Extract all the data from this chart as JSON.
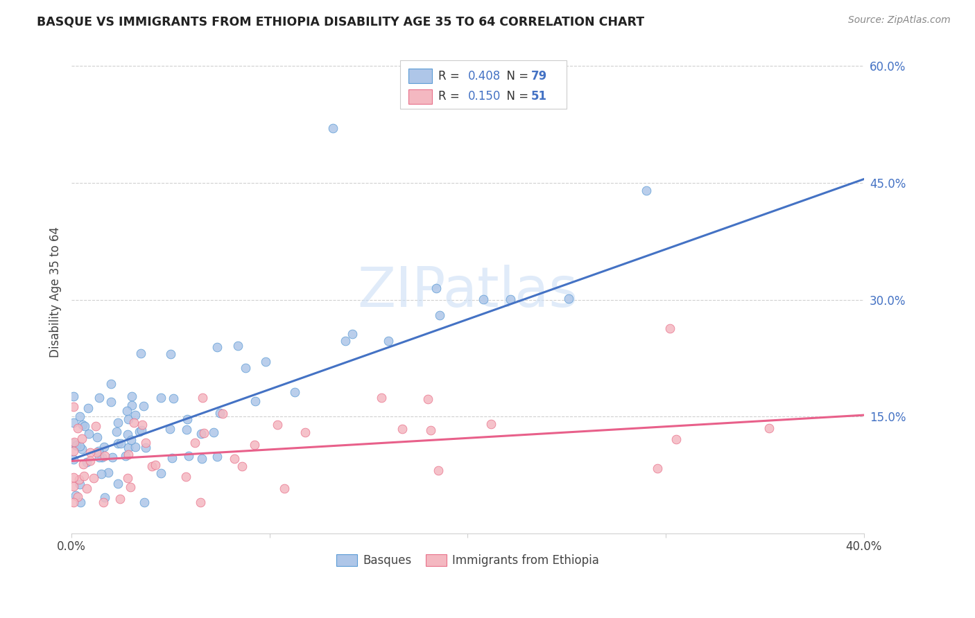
{
  "title": "BASQUE VS IMMIGRANTS FROM ETHIOPIA DISABILITY AGE 35 TO 64 CORRELATION CHART",
  "source": "Source: ZipAtlas.com",
  "ylabel": "Disability Age 35 to 64",
  "xlim": [
    0.0,
    0.4
  ],
  "ylim": [
    0.0,
    0.62
  ],
  "yticks_right": [
    0.15,
    0.3,
    0.45,
    0.6
  ],
  "ytick_labels_right": [
    "15.0%",
    "30.0%",
    "45.0%",
    "60.0%"
  ],
  "legend_labels": [
    "Basques",
    "Immigrants from Ethiopia"
  ],
  "basque_fill_color": "#aec6e8",
  "ethiopia_fill_color": "#f4b8c1",
  "basque_edge_color": "#5b9bd5",
  "ethiopia_edge_color": "#e8708a",
  "basque_line_color": "#4472c4",
  "ethiopia_line_color": "#e8608a",
  "R_basque": "0.408",
  "N_basque": "79",
  "R_ethiopia": "0.150",
  "N_ethiopia": "51",
  "basque_line_x0": 0.0,
  "basque_line_x1": 0.4,
  "basque_line_y0": 0.095,
  "basque_line_y1": 0.455,
  "ethiopia_line_x0": 0.0,
  "ethiopia_line_x1": 0.4,
  "ethiopia_line_y0": 0.093,
  "ethiopia_line_y1": 0.152,
  "watermark_text": "ZIPatlas",
  "grid_color": "#d0d0d0",
  "spine_color": "#d0d0d0"
}
